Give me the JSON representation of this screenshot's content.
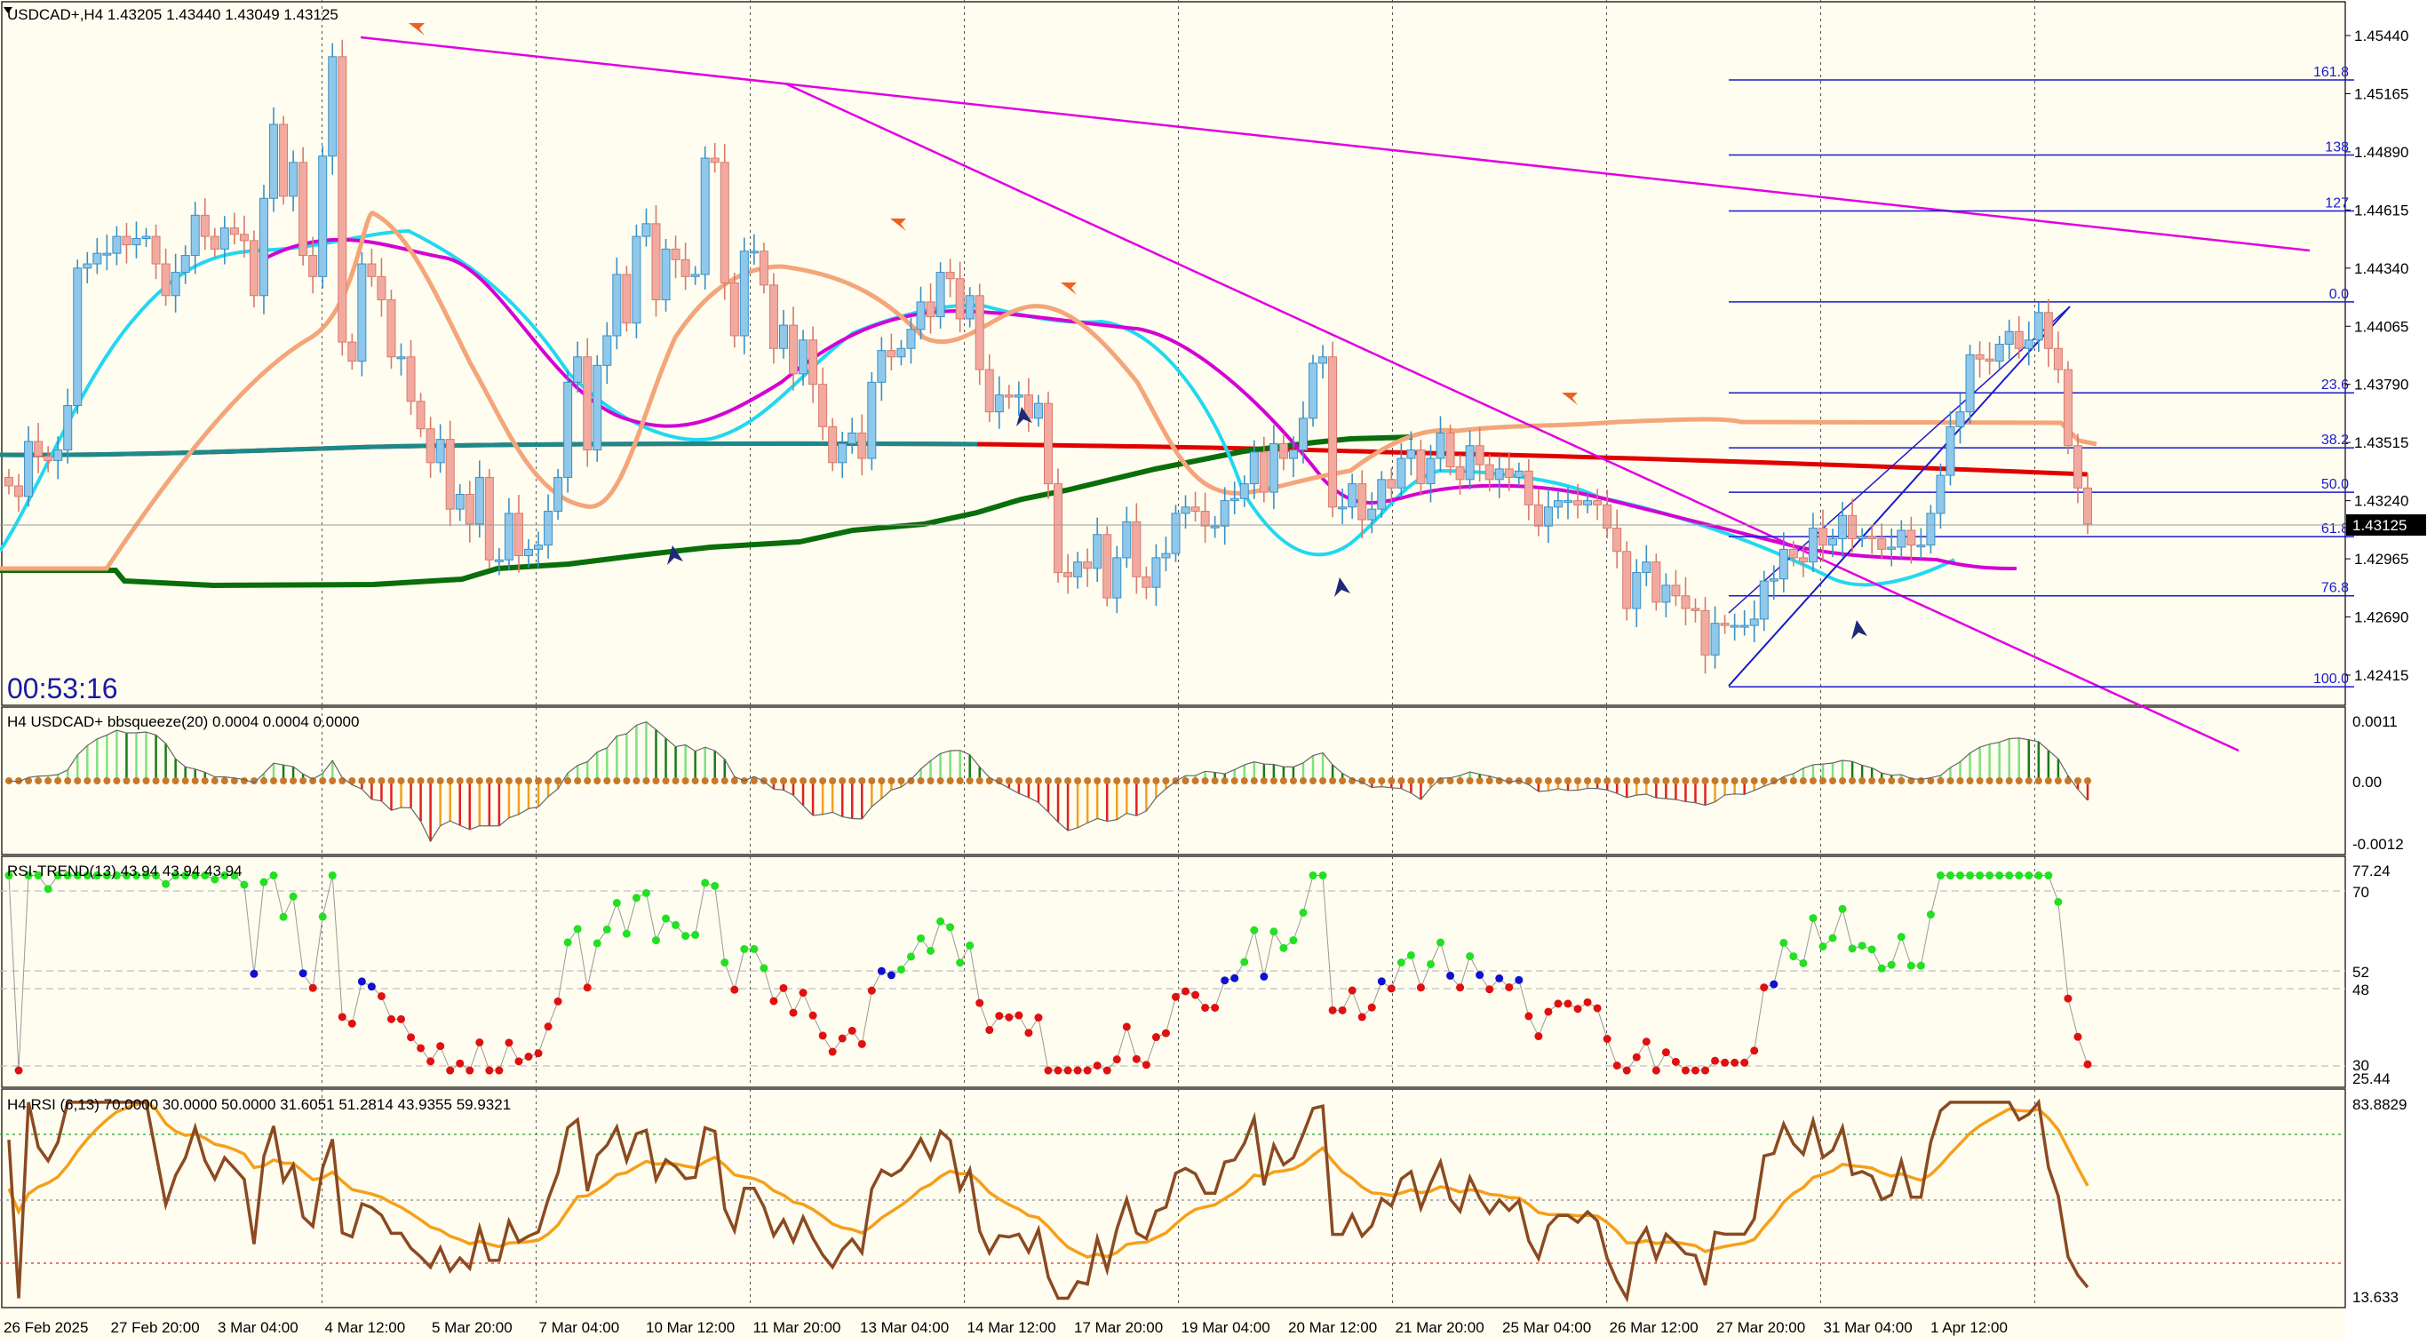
{
  "chart_data": {
    "type": "candlestick",
    "symbol_header": "USDCAD+,H4  1.43205 1.43440 1.43049 1.43125",
    "countdown": "00:53:16",
    "current_price_label": "1.43125",
    "colors": {
      "background": "#fffdf0",
      "bull": "#8fc8ea",
      "bear": "#f2aaa0",
      "price_line": "#000000"
    },
    "price_axis": {
      "ticks": [
        "1.45440",
        "1.45165",
        "1.44890",
        "1.44615",
        "1.44340",
        "1.44065",
        "1.43790",
        "1.43515",
        "1.43240",
        "1.42965",
        "1.42690",
        "1.42415"
      ],
      "range": [
        1.4213,
        1.457
      ]
    },
    "time_axis": [
      "26 Feb 2025",
      "27 Feb 20:00",
      "3 Mar 04:00",
      "4 Mar 12:00",
      "5 Mar 20:00",
      "7 Mar 04:00",
      "10 Mar 12:00",
      "11 Mar 20:00",
      "13 Mar 04:00",
      "14 Mar 12:00",
      "17 Mar 20:00",
      "19 Mar 04:00",
      "20 Mar 12:00",
      "21 Mar 20:00",
      "25 Mar 04:00",
      "26 Mar 12:00",
      "27 Mar 20:00",
      "31 Mar 04:00",
      "1 Apr 12:00"
    ],
    "fibonacci_levels": [
      {
        "label": "161.8",
        "price": 1.4523
      },
      {
        "label": "138",
        "price": 1.44875
      },
      {
        "label": "127",
        "price": 1.4461
      },
      {
        "label": "0.0",
        "price": 1.4418
      },
      {
        "label": "23.6",
        "price": 1.4375
      },
      {
        "label": "38.2",
        "price": 1.4349
      },
      {
        "label": "50.0",
        "price": 1.4328
      },
      {
        "label": "61.8",
        "price": 1.4307
      },
      {
        "label": "76.8",
        "price": 1.4279
      },
      {
        "label": "100.0",
        "price": 1.4236
      }
    ],
    "closes": [
      1.4331,
      1.4326,
      1.4352,
      1.4345,
      1.4343,
      1.4348,
      1.4369,
      1.4434,
      1.4436,
      1.4441,
      1.4441,
      1.4449,
      1.4445,
      1.4448,
      1.4449,
      1.4436,
      1.4421,
      1.4432,
      1.444,
      1.4459,
      1.4449,
      1.4443,
      1.4453,
      1.445,
      1.4447,
      1.4421,
      1.4467,
      1.4502,
      1.4468,
      1.4484,
      1.444,
      1.443,
      1.4487,
      1.4534,
      1.4399,
      1.439,
      1.4436,
      1.443,
      1.4419,
      1.4392,
      1.4392,
      1.4371,
      1.4358,
      1.4342,
      1.4353,
      1.432,
      1.4327,
      1.4313,
      1.4335,
      1.4296,
      1.4296,
      1.4318,
      1.4298,
      1.4301,
      1.4303,
      1.4319,
      1.4335,
      1.438,
      1.4392,
      1.4348,
      1.4388,
      1.4402,
      1.4431,
      1.4408,
      1.4449,
      1.4455,
      1.4419,
      1.4443,
      1.4438,
      1.443,
      1.4431,
      1.4486,
      1.4484,
      1.4427,
      1.4402,
      1.4442,
      1.4442,
      1.4426,
      1.4396,
      1.4407,
      1.4384,
      1.44,
      1.4379,
      1.4359,
      1.4342,
      1.4351,
      1.4356,
      1.4344,
      1.438,
      1.4395,
      1.4392,
      1.4396,
      1.4405,
      1.4418,
      1.4411,
      1.4432,
      1.4429,
      1.441,
      1.4421,
      1.4386,
      1.4366,
      1.4374,
      1.4373,
      1.4374,
      1.4363,
      1.437,
      1.4332,
      1.429,
      1.4288,
      1.4295,
      1.4292,
      1.4308,
      1.4278,
      1.4297,
      1.4314,
      1.4288,
      1.4283,
      1.4297,
      1.4299,
      1.4318,
      1.4321,
      1.4319,
      1.4312,
      1.4312,
      1.4324,
      1.4325,
      1.4332,
      1.4347,
      1.4328,
      1.4351,
      1.4344,
      1.4348,
      1.4363,
      1.4389,
      1.4392,
      1.4321,
      1.4321,
      1.4332,
      1.4315,
      1.432,
      1.4334,
      1.433,
      1.4344,
      1.4348,
      1.4332,
      1.4344,
      1.4356,
      1.434,
      1.4334,
      1.435,
      1.4341,
      1.4334,
      1.4339,
      1.4335,
      1.4338,
      1.4322,
      1.4312,
      1.4321,
      1.4324,
      1.4324,
      1.4322,
      1.4324,
      1.4322,
      1.4311,
      1.43,
      1.4273,
      1.429,
      1.4295,
      1.4276,
      1.4284,
      1.4279,
      1.4273,
      1.4272,
      1.4251,
      1.4266,
      1.4265,
      1.4265,
      1.4265,
      1.4268,
      1.4286,
      1.4287,
      1.4301,
      1.4297,
      1.4295,
      1.4311,
      1.4303,
      1.4306,
      1.4317,
      1.4306,
      1.4307,
      1.4306,
      1.4301,
      1.4302,
      1.431,
      1.4303,
      1.4303,
      1.4318,
      1.4336,
      1.4359,
      1.4366,
      1.4393,
      1.4391,
      1.439,
      1.4398,
      1.4404,
      1.4396,
      1.44,
      1.4413,
      1.4396,
      1.4386,
      1.435,
      1.433,
      1.4313
    ],
    "indicators": [
      {
        "name": "bbsqueeze",
        "header": "H4 USDCAD+ bbsqueeze(20) 0.0004 0.0004 0.0000",
        "axis": [
          "0.0011",
          "0.00",
          "-0.0012"
        ]
      },
      {
        "name": "RSI-TREND",
        "header": "RSI-TREND(13) 43.94 43.94 43.94",
        "axis": [
          "77.24",
          "70",
          "52",
          "48",
          "30",
          "25.44"
        ]
      },
      {
        "name": "RSI",
        "header": "H4 RSI  (6,13) 70.0000 30.0000 50.0000 31.6051 51.2814 43.9355 59.9321",
        "axis": [
          "83.8829",
          "13.633"
        ]
      }
    ]
  }
}
